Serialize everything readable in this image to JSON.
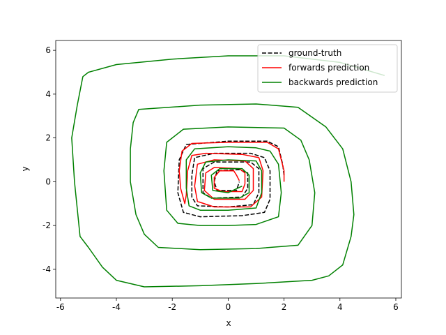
{
  "chart_data": {
    "type": "line",
    "xlabel": "x",
    "ylabel": "y",
    "xlim": [
      -6.17,
      6.2
    ],
    "ylim": [
      -5.31,
      6.45
    ],
    "xticks": [
      -6,
      -4,
      -2,
      0,
      2,
      4,
      6
    ],
    "yticks": [
      -4,
      -2,
      0,
      2,
      4,
      6
    ],
    "legend": "upper right",
    "series": [
      {
        "name": "ground-truth",
        "color": "#000000",
        "linestyle": "dashed",
        "x": [
          2.0,
          1.95,
          1.8,
          1.4,
          0,
          -1.5,
          -1.75,
          -1.8,
          -1.6,
          -1.0,
          0.5,
          1.3,
          1.5,
          1.5,
          1.3,
          0.8,
          -0.5,
          -1.2,
          -1.3,
          -1.3,
          -1.1,
          0,
          0.9,
          1.1,
          1.1,
          0.8,
          -0.5,
          -0.9,
          -0.9,
          -0.6,
          0.5,
          0.7,
          0.7,
          0.4,
          -0.4,
          -0.5,
          -0.4,
          0.3,
          0.4
        ],
        "y": [
          0.3,
          0.8,
          1.6,
          1.85,
          1.85,
          1.7,
          1.0,
          -0.5,
          -1.4,
          -1.6,
          -1.55,
          -1.4,
          -0.8,
          0.5,
          1.1,
          1.3,
          1.3,
          1.1,
          0.3,
          -0.7,
          -1.1,
          -1.15,
          -1.05,
          -0.5,
          0.6,
          0.9,
          0.9,
          0.6,
          -0.5,
          -0.75,
          -0.7,
          -0.3,
          0.4,
          0.55,
          0.5,
          0,
          -0.4,
          -0.4,
          0
        ]
      },
      {
        "name": "forwards prediction",
        "color": "#ff0000",
        "linestyle": "solid",
        "x": [
          0.4,
          0.3,
          0.2,
          -0.3,
          -0.5,
          -0.5,
          -0.2,
          0.5,
          0.6,
          0.6,
          0.4,
          -0.5,
          -0.8,
          -0.85,
          -0.5,
          0.6,
          0.9,
          0.9,
          0.6,
          -0.5,
          -1.1,
          -1.2,
          -1.1,
          -0.5,
          0.8,
          1.2,
          1.25,
          1.1,
          0.5,
          -0.8,
          -1.3,
          -1.45,
          -1.5,
          -1.55,
          -1.7,
          -1.75,
          -1.65,
          -1.3,
          0,
          1.4,
          1.8,
          2.0,
          2.0
        ],
        "y": [
          0.05,
          0.3,
          0.5,
          0.5,
          0.2,
          -0.3,
          -0.45,
          -0.45,
          -0.1,
          0.4,
          0.6,
          0.65,
          0.4,
          -0.4,
          -0.8,
          -0.8,
          -0.4,
          0.6,
          0.95,
          1.0,
          0.8,
          -0.2,
          -0.9,
          -1.15,
          -1.15,
          -0.7,
          0.5,
          1.1,
          1.25,
          1.3,
          1.2,
          0.5,
          -0.6,
          -1.0,
          -0.3,
          0.5,
          1.4,
          1.75,
          1.8,
          1.8,
          1.5,
          0.5,
          0
        ]
      },
      {
        "name": "backwards prediction",
        "color": "#008000",
        "linestyle": "solid",
        "x": [
          5.6,
          4,
          2,
          0,
          -2,
          -4,
          -5.0,
          -5.2,
          -5.4,
          -5.6,
          -5.5,
          -5.3,
          -5.0,
          -4.5,
          -4.0,
          -3,
          -1,
          1,
          3,
          3.6,
          4.1,
          4.4,
          4.5,
          4.4,
          4.1,
          3.5,
          2.5,
          1,
          -1,
          -3.2,
          -3.4,
          -3.5,
          -3.5,
          -3.3,
          -3,
          -2.5,
          -1,
          1,
          2.5,
          3.0,
          3.1,
          2.9,
          2.6,
          2,
          0,
          -1.6,
          -2.2,
          -2.3,
          -2.2,
          -1.8,
          -1,
          0,
          1,
          1.8,
          1.9,
          1.8,
          1.5,
          1,
          0,
          -1.2,
          -1.5,
          -1.5,
          -1.4,
          -1,
          0,
          1.0,
          1.2,
          1.2,
          1,
          0,
          -0.8,
          -1,
          -0.95,
          -0.6,
          0.4,
          0.75,
          0.75,
          0.5,
          -0.3,
          -0.6,
          -0.55,
          0,
          0.5
        ],
        "y": [
          4.85,
          5.45,
          5.75,
          5.75,
          5.6,
          5.35,
          5.0,
          4.8,
          3.5,
          2.0,
          0,
          -2.5,
          -3.0,
          -3.9,
          -4.5,
          -4.8,
          -4.75,
          -4.65,
          -4.5,
          -4.3,
          -3.8,
          -2.5,
          -1.5,
          0,
          1.5,
          2.5,
          3.4,
          3.55,
          3.5,
          3.3,
          2.7,
          1.5,
          0,
          -1.5,
          -2.4,
          -3,
          -3.1,
          -3.05,
          -2.9,
          -2.0,
          -0.5,
          1.0,
          1.9,
          2.45,
          2.5,
          2.4,
          1.8,
          0.5,
          -1.3,
          -1.9,
          -2.0,
          -2.0,
          -1.95,
          -1.6,
          -0.5,
          0.8,
          1.4,
          1.55,
          1.6,
          1.5,
          1.0,
          -0.3,
          -1.1,
          -1.3,
          -1.3,
          -1.2,
          -0.5,
          0.5,
          0.95,
          1.0,
          0.9,
          0.4,
          -0.5,
          -0.75,
          -0.75,
          -0.5,
          0.3,
          0.6,
          0.6,
          0.3,
          -0.4,
          -0.5,
          -0.2
        ]
      }
    ]
  }
}
